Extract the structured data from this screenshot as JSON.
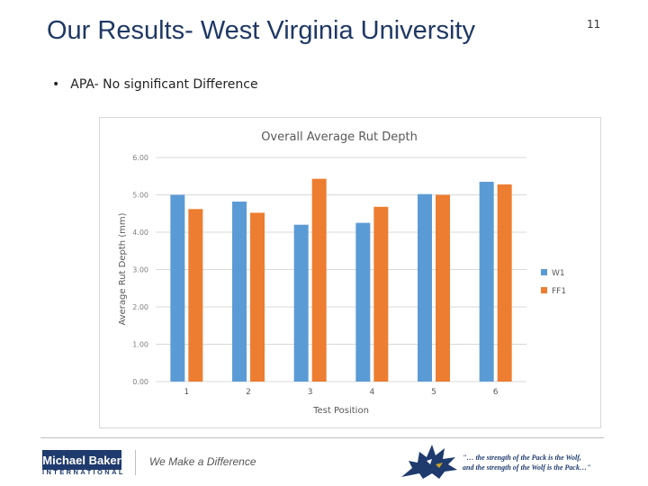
{
  "slide": {
    "title": "Our Results- West Virginia University",
    "number": "11",
    "bullet_symbol": "•",
    "bullet": "APA- No significant Difference"
  },
  "chart_data": {
    "type": "bar",
    "title": "Overall Average Rut Depth",
    "xlabel": "Test Position",
    "ylabel": "Average Rut Depth (mm)",
    "categories": [
      "1",
      "2",
      "3",
      "4",
      "5",
      "6"
    ],
    "series": [
      {
        "name": "W1",
        "color": "#5b9bd5",
        "values": [
          5.0,
          4.82,
          4.2,
          4.25,
          5.02,
          5.35
        ]
      },
      {
        "name": "FF1",
        "color": "#ed7d31",
        "values": [
          4.62,
          4.52,
          5.43,
          4.68,
          5.0,
          5.28
        ]
      }
    ],
    "ylim": [
      0,
      6
    ],
    "yticks": [
      "0.00",
      "1.00",
      "2.00",
      "3.00",
      "4.00",
      "5.00",
      "6.00"
    ],
    "grid": true,
    "legend_position": "right"
  },
  "footer": {
    "logo_name": "Michael Baker",
    "logo_sub": "INTERNATIONAL",
    "tagline": "We Make a Difference",
    "quote_line1": "\"… the strength of the Pack is the Wolf,",
    "quote_line2": "and the strength of the Wolf is the Pack…\""
  },
  "icons": {
    "wolf": "wolf-mascot-icon"
  }
}
